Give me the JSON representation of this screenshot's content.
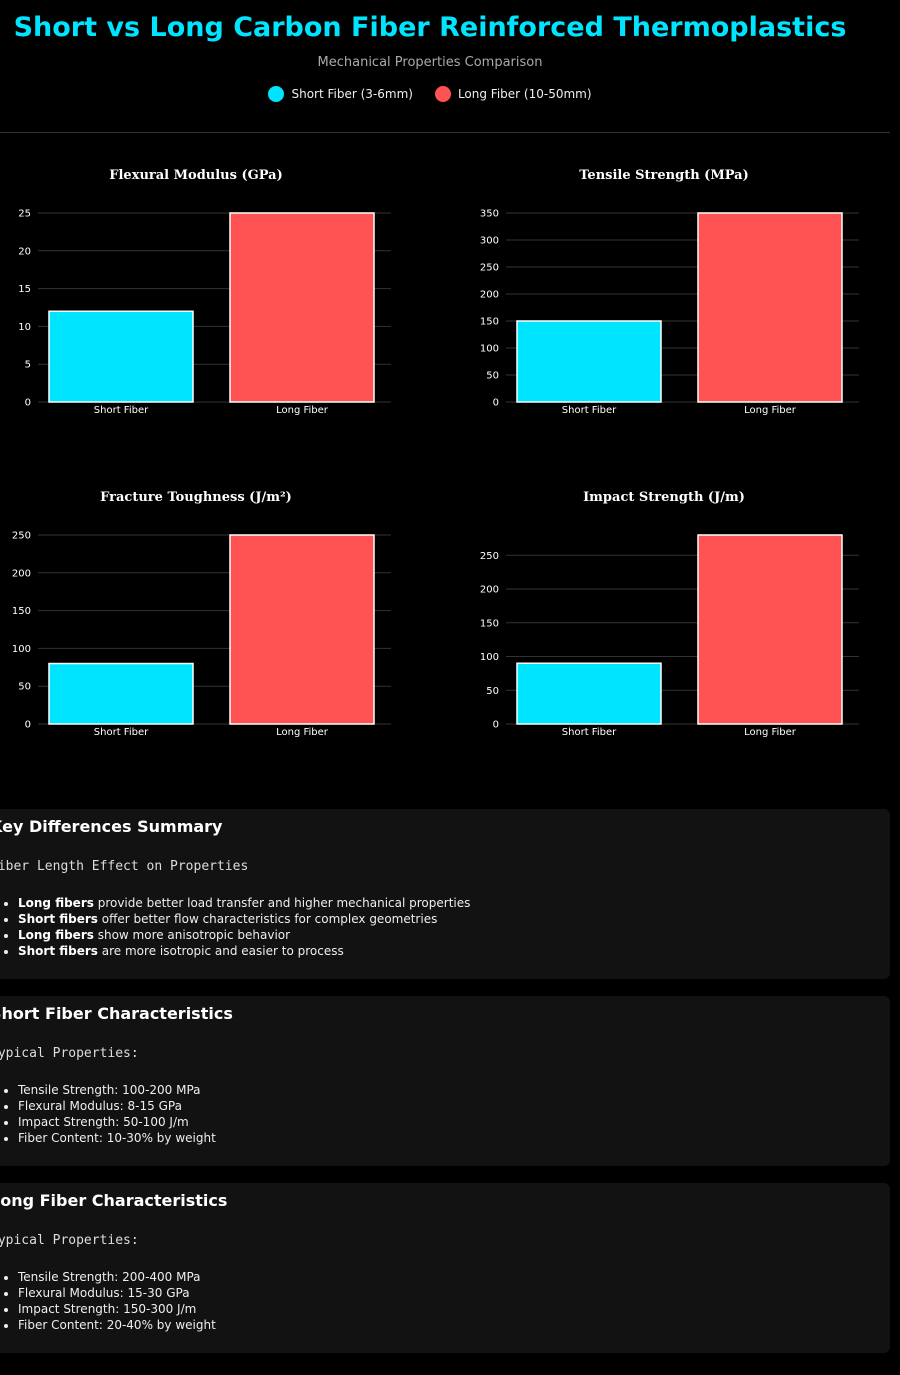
{
  "header": {
    "title": "Short vs Long Carbon Fiber Reinforced Thermoplastics",
    "subtitle": "Mechanical Properties Comparison",
    "legend": [
      {
        "label": "Short Fiber (3-6mm)",
        "color": "#00e5ff"
      },
      {
        "label": "Long Fiber (10-50mm)",
        "color": "#ff5252"
      }
    ]
  },
  "colors": {
    "short": "#00e5ff",
    "long": "#ff5252",
    "grid": "#333333",
    "bar_border": "#ffffff"
  },
  "chart_data": [
    {
      "type": "bar",
      "title": "Flexural Modulus (GPa)",
      "categories": [
        "Short Fiber",
        "Long Fiber"
      ],
      "values": [
        12,
        25
      ],
      "ylim": [
        0,
        25
      ],
      "yticks": [
        0,
        5,
        10,
        15,
        20,
        25
      ]
    },
    {
      "type": "bar",
      "title": "Tensile Strength (MPa)",
      "categories": [
        "Short Fiber",
        "Long Fiber"
      ],
      "values": [
        150,
        350
      ],
      "ylim": [
        0,
        350
      ],
      "yticks": [
        0,
        50,
        100,
        150,
        200,
        250,
        300,
        350
      ]
    },
    {
      "type": "bar",
      "title": "Fracture Toughness (J/m²)",
      "categories": [
        "Short Fiber",
        "Long Fiber"
      ],
      "values": [
        80,
        250
      ],
      "ylim": [
        0,
        250
      ],
      "yticks": [
        0,
        50,
        100,
        150,
        200,
        250
      ]
    },
    {
      "type": "bar",
      "title": "Impact Strength (J/m)",
      "categories": [
        "Short Fiber",
        "Long Fiber"
      ],
      "values": [
        90,
        280
      ],
      "ylim": [
        0,
        280
      ],
      "yticks": [
        0,
        50,
        100,
        150,
        200,
        250
      ]
    }
  ],
  "summary": {
    "title": "Key Differences Summary",
    "subtitle": "Fiber Length Effect on Properties",
    "items": [
      {
        "bold": "Long fibers",
        "text": " provide better load transfer and higher mechanical properties"
      },
      {
        "bold": "Short fibers",
        "text": " offer better flow characteristics for complex geometries"
      },
      {
        "bold": "Long fibers",
        "text": " show more anisotropic behavior"
      },
      {
        "bold": "Short fibers",
        "text": " are more isotropic and easier to process"
      }
    ]
  },
  "short_card": {
    "title": "Short Fiber Characteristics",
    "subtitle": "Typical Properties:",
    "items": [
      "Tensile Strength: 100-200 MPa",
      "Flexural Modulus: 8-15 GPa",
      "Impact Strength: 50-100 J/m",
      "Fiber Content: 10-30% by weight"
    ]
  },
  "long_card": {
    "title": "Long Fiber Characteristics",
    "subtitle": "Typical Properties:",
    "items": [
      "Tensile Strength: 200-400 MPa",
      "Flexural Modulus: 15-30 GPa",
      "Impact Strength: 150-300 J/m",
      "Fiber Content: 20-40% by weight"
    ]
  }
}
